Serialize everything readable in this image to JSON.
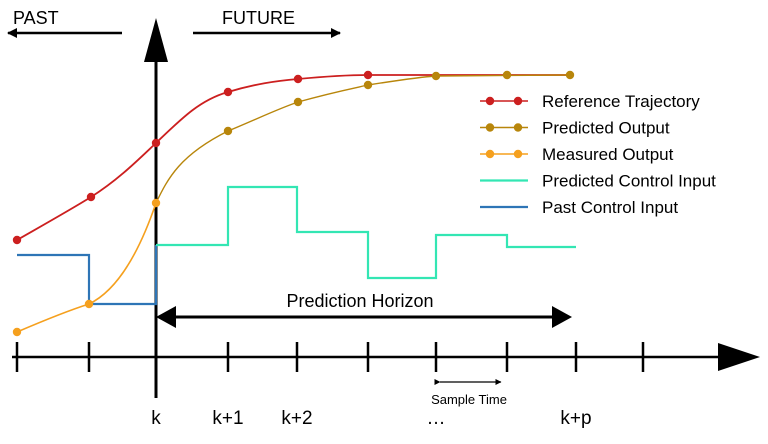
{
  "header": {
    "past_label": "PAST",
    "future_label": "FUTURE"
  },
  "horizon": {
    "label": "Prediction Horizon"
  },
  "sample_time": {
    "label": "Sample Time"
  },
  "time_axis": {
    "tick_labels": [
      {
        "text": "k",
        "tick": 2
      },
      {
        "text": "k+1",
        "tick": 3
      },
      {
        "text": "k+2",
        "tick": 4
      },
      {
        "text": "…",
        "tick": 6
      },
      {
        "text": "k+p",
        "tick": 8
      }
    ]
  },
  "legend": [
    {
      "label": "Reference Trajectory",
      "color": "#cc1f1f",
      "marker": "dot"
    },
    {
      "label": "Predicted Output",
      "color": "#b8860b",
      "marker": "dot"
    },
    {
      "label": "Measured Output",
      "color": "#f5a01e",
      "marker": "dot"
    },
    {
      "label": "Predicted Control Input",
      "color": "#33e6b3",
      "marker": "line"
    },
    {
      "label": "Past Control Input",
      "color": "#2e75b6",
      "marker": "line"
    }
  ]
}
